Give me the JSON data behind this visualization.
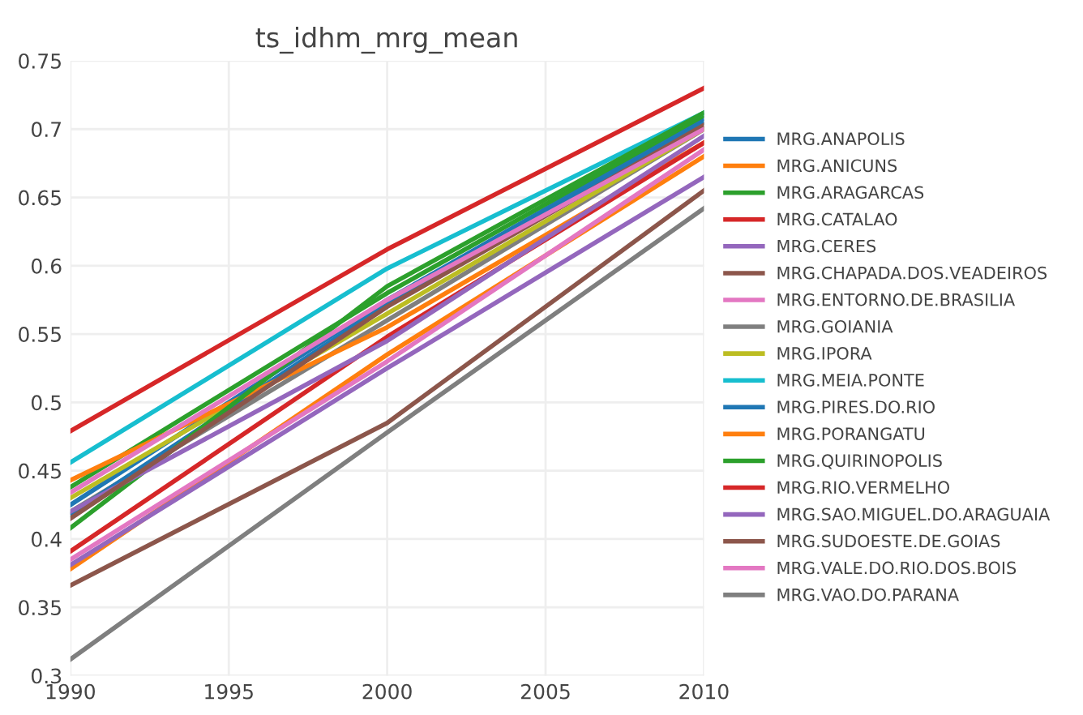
{
  "chart_data": {
    "type": "line",
    "title": "ts_idhm_mrg_mean",
    "x": [
      1990,
      2000,
      2010
    ],
    "xlim": [
      1990,
      2010
    ],
    "xticks": [
      1990,
      1995,
      2000,
      2005,
      2010
    ],
    "ylim": [
      0.3,
      0.75
    ],
    "yticks": [
      0.3,
      0.35,
      0.4,
      0.45,
      0.5,
      0.55,
      0.6,
      0.65,
      0.7,
      0.75
    ],
    "grid": true,
    "legend": "right",
    "marker": "none",
    "line_style": "solid",
    "series": [
      {
        "name": "MRG.ANAPOLIS",
        "color": "#1f77b4",
        "values": [
          0.425,
          0.575,
          0.708
        ]
      },
      {
        "name": "MRG.ANICUNS",
        "color": "#ff7f0e",
        "values": [
          0.378,
          0.535,
          0.68
        ]
      },
      {
        "name": "MRG.ARAGARCAS",
        "color": "#2ca02c",
        "values": [
          0.438,
          0.58,
          0.71
        ]
      },
      {
        "name": "MRG.CATALAO",
        "color": "#d62728",
        "values": [
          0.479,
          0.612,
          0.73
        ]
      },
      {
        "name": "MRG.CERES",
        "color": "#9467bd",
        "values": [
          0.381,
          0.525,
          0.665
        ]
      },
      {
        "name": "MRG.CHAPADA.DOS.VEADEIROS",
        "color": "#8c564b",
        "values": [
          0.366,
          0.485,
          0.655
        ]
      },
      {
        "name": "MRG.ENTORNO.DE.BRASILIA",
        "color": "#e377c2",
        "values": [
          0.385,
          0.53,
          0.685
        ]
      },
      {
        "name": "MRG.GOIANIA",
        "color": "#7f7f7f",
        "values": [
          0.42,
          0.56,
          0.7
        ]
      },
      {
        "name": "MRG.IPORA",
        "color": "#bcbd22",
        "values": [
          0.43,
          0.565,
          0.7
        ]
      },
      {
        "name": "MRG.MEIA.PONTE",
        "color": "#17becf",
        "values": [
          0.456,
          0.598,
          0.712
        ]
      },
      {
        "name": "MRG.PIRES.DO.RIO",
        "color": "#1f77b4",
        "values": [
          0.418,
          0.572,
          0.705
        ]
      },
      {
        "name": "MRG.PORANGATU",
        "color": "#ff7f0e",
        "values": [
          0.443,
          0.555,
          0.69
        ]
      },
      {
        "name": "MRG.QUIRINOPOLIS",
        "color": "#2ca02c",
        "values": [
          0.408,
          0.585,
          0.712
        ]
      },
      {
        "name": "MRG.RIO.VERMELHO",
        "color": "#d62728",
        "values": [
          0.391,
          0.548,
          0.69
        ]
      },
      {
        "name": "MRG.SAO.MIGUEL.DO.ARAGUAIA",
        "color": "#9467bd",
        "values": [
          0.42,
          0.545,
          0.695
        ]
      },
      {
        "name": "MRG.SUDOESTE.DE.GOIAS",
        "color": "#8c564b",
        "values": [
          0.415,
          0.57,
          0.703
        ]
      },
      {
        "name": "MRG.VALE.DO.RIO.DOS.BOIS",
        "color": "#e377c2",
        "values": [
          0.434,
          0.575,
          0.7
        ]
      },
      {
        "name": "MRG.VAO.DO.PARANA",
        "color": "#7f7f7f",
        "values": [
          0.312,
          0.478,
          0.642
        ]
      }
    ]
  }
}
